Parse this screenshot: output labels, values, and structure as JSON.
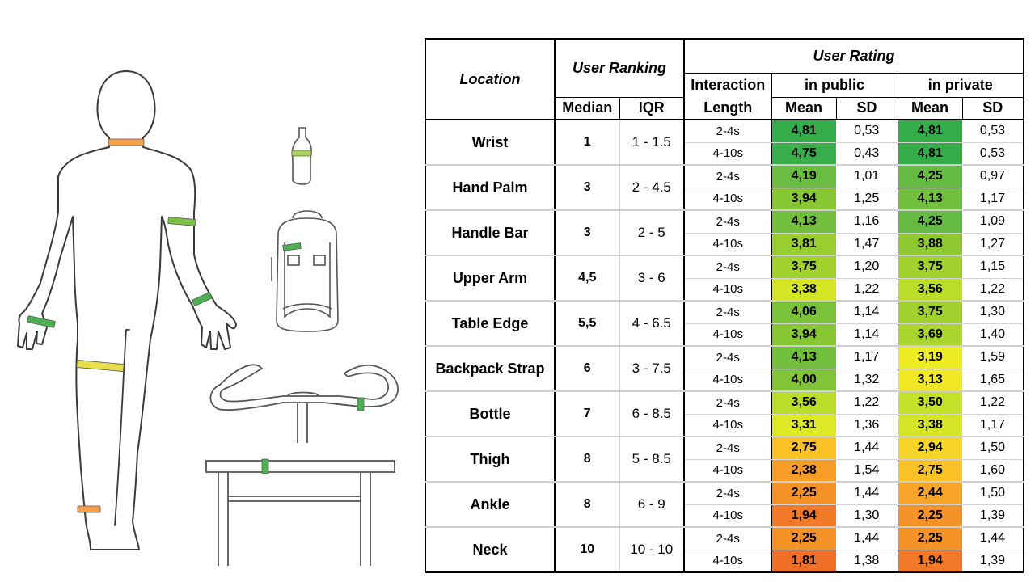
{
  "colors": {
    "orange": "#f5a04a",
    "green": "#7ac14a",
    "yellow": "#e6e04a",
    "dark_orange": "#f07f30",
    "outline": "#3a3a3a"
  },
  "headers": {
    "location": "Location",
    "user_ranking": "User Ranking",
    "user_rating": "User Rating",
    "interaction_length": [
      "Interaction",
      "Length"
    ],
    "in_public": "in public",
    "in_private": "in private",
    "median": "Median",
    "iqr": "IQR",
    "mean": "Mean",
    "sd": "SD"
  },
  "rows": [
    {
      "location": "Wrist",
      "median": "1",
      "iqr": "1 - 1.5",
      "sub": [
        {
          "len": "2-4s",
          "pub_mean": "4,81",
          "pub_sd": "0,53",
          "priv_mean": "4,81",
          "priv_sd": "0,53"
        },
        {
          "len": "4-10s",
          "pub_mean": "4,75",
          "pub_sd": "0,43",
          "priv_mean": "4,81",
          "priv_sd": "0,53"
        }
      ]
    },
    {
      "location": "Hand Palm",
      "median": "3",
      "iqr": "2 - 4.5",
      "sub": [
        {
          "len": "2-4s",
          "pub_mean": "4,19",
          "pub_sd": "1,01",
          "priv_mean": "4,25",
          "priv_sd": "0,97"
        },
        {
          "len": "4-10s",
          "pub_mean": "3,94",
          "pub_sd": "1,25",
          "priv_mean": "4,13",
          "priv_sd": "1,17"
        }
      ]
    },
    {
      "location": "Handle Bar",
      "median": "3",
      "iqr": "2 - 5",
      "sub": [
        {
          "len": "2-4s",
          "pub_mean": "4,13",
          "pub_sd": "1,16",
          "priv_mean": "4,25",
          "priv_sd": "1,09"
        },
        {
          "len": "4-10s",
          "pub_mean": "3,81",
          "pub_sd": "1,47",
          "priv_mean": "3,88",
          "priv_sd": "1,27"
        }
      ]
    },
    {
      "location": "Upper Arm",
      "median": "4,5",
      "iqr": "3 - 6",
      "sub": [
        {
          "len": "2-4s",
          "pub_mean": "3,75",
          "pub_sd": "1,20",
          "priv_mean": "3,75",
          "priv_sd": "1,15"
        },
        {
          "len": "4-10s",
          "pub_mean": "3,38",
          "pub_sd": "1,22",
          "priv_mean": "3,56",
          "priv_sd": "1,22"
        }
      ]
    },
    {
      "location": "Table Edge",
      "median": "5,5",
      "iqr": "4 - 6.5",
      "sub": [
        {
          "len": "2-4s",
          "pub_mean": "4,06",
          "pub_sd": "1,14",
          "priv_mean": "3,75",
          "priv_sd": "1,30"
        },
        {
          "len": "4-10s",
          "pub_mean": "3,94",
          "pub_sd": "1,14",
          "priv_mean": "3,69",
          "priv_sd": "1,40"
        }
      ]
    },
    {
      "location": "Backpack Strap",
      "median": "6",
      "iqr": "3 - 7.5",
      "sub": [
        {
          "len": "2-4s",
          "pub_mean": "4,13",
          "pub_sd": "1,17",
          "priv_mean": "3,19",
          "priv_sd": "1,59"
        },
        {
          "len": "4-10s",
          "pub_mean": "4,00",
          "pub_sd": "1,32",
          "priv_mean": "3,13",
          "priv_sd": "1,65"
        }
      ]
    },
    {
      "location": "Bottle",
      "median": "7",
      "iqr": "6 - 8.5",
      "sub": [
        {
          "len": "2-4s",
          "pub_mean": "3,56",
          "pub_sd": "1,22",
          "priv_mean": "3,50",
          "priv_sd": "1,22"
        },
        {
          "len": "4-10s",
          "pub_mean": "3,31",
          "pub_sd": "1,36",
          "priv_mean": "3,38",
          "priv_sd": "1,17"
        }
      ]
    },
    {
      "location": "Thigh",
      "median": "8",
      "iqr": "5 - 8.5",
      "sub": [
        {
          "len": "2-4s",
          "pub_mean": "2,75",
          "pub_sd": "1,44",
          "priv_mean": "2,94",
          "priv_sd": "1,50"
        },
        {
          "len": "4-10s",
          "pub_mean": "2,38",
          "pub_sd": "1,54",
          "priv_mean": "2,75",
          "priv_sd": "1,60"
        }
      ]
    },
    {
      "location": "Ankle",
      "median": "8",
      "iqr": "6 - 9",
      "sub": [
        {
          "len": "2-4s",
          "pub_mean": "2,25",
          "pub_sd": "1,44",
          "priv_mean": "2,44",
          "priv_sd": "1,50"
        },
        {
          "len": "4-10s",
          "pub_mean": "1,94",
          "pub_sd": "1,30",
          "priv_mean": "2,25",
          "priv_sd": "1,39"
        }
      ]
    },
    {
      "location": "Neck",
      "median": "10",
      "iqr": "10 - 10",
      "sub": [
        {
          "len": "2-4s",
          "pub_mean": "2,25",
          "pub_sd": "1,44",
          "priv_mean": "2,25",
          "priv_sd": "1,44"
        },
        {
          "len": "4-10s",
          "pub_mean": "1,81",
          "pub_sd": "1,38",
          "priv_mean": "1,94",
          "priv_sd": "1,39"
        }
      ]
    }
  ]
}
